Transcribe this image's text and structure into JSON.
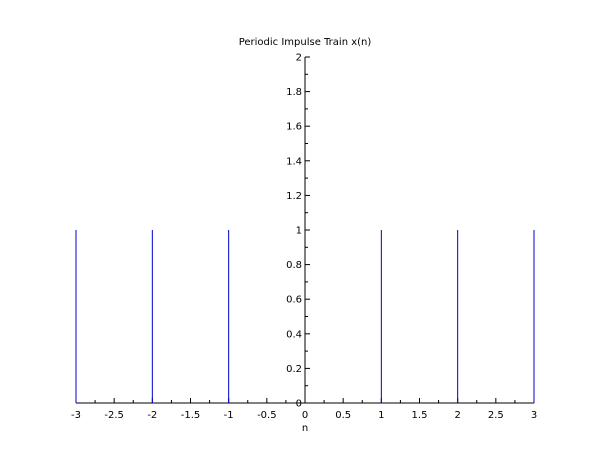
{
  "chart_data": {
    "type": "stem",
    "title": "Periodic Impulse Train x(n)",
    "xlabel": "n",
    "ylabel": "",
    "xlim": [
      -3,
      3
    ],
    "ylim": [
      0,
      2
    ],
    "x_ticks": [
      "-3",
      "-2.5",
      "-2",
      "-1.5",
      "-1",
      "-0.5",
      "0",
      "0.5",
      "1",
      "1.5",
      "2",
      "2.5",
      "3"
    ],
    "y_ticks": [
      "0",
      "0.2",
      "0.4",
      "0.6",
      "0.8",
      "1",
      "1.2",
      "1.4",
      "1.6",
      "1.8",
      "2"
    ],
    "x": [
      -3,
      -2,
      -1,
      0,
      1,
      2,
      3
    ],
    "y": [
      1,
      1,
      1,
      0,
      1,
      1,
      1
    ],
    "color": "#0000cc",
    "grid": false,
    "legend": "none"
  }
}
